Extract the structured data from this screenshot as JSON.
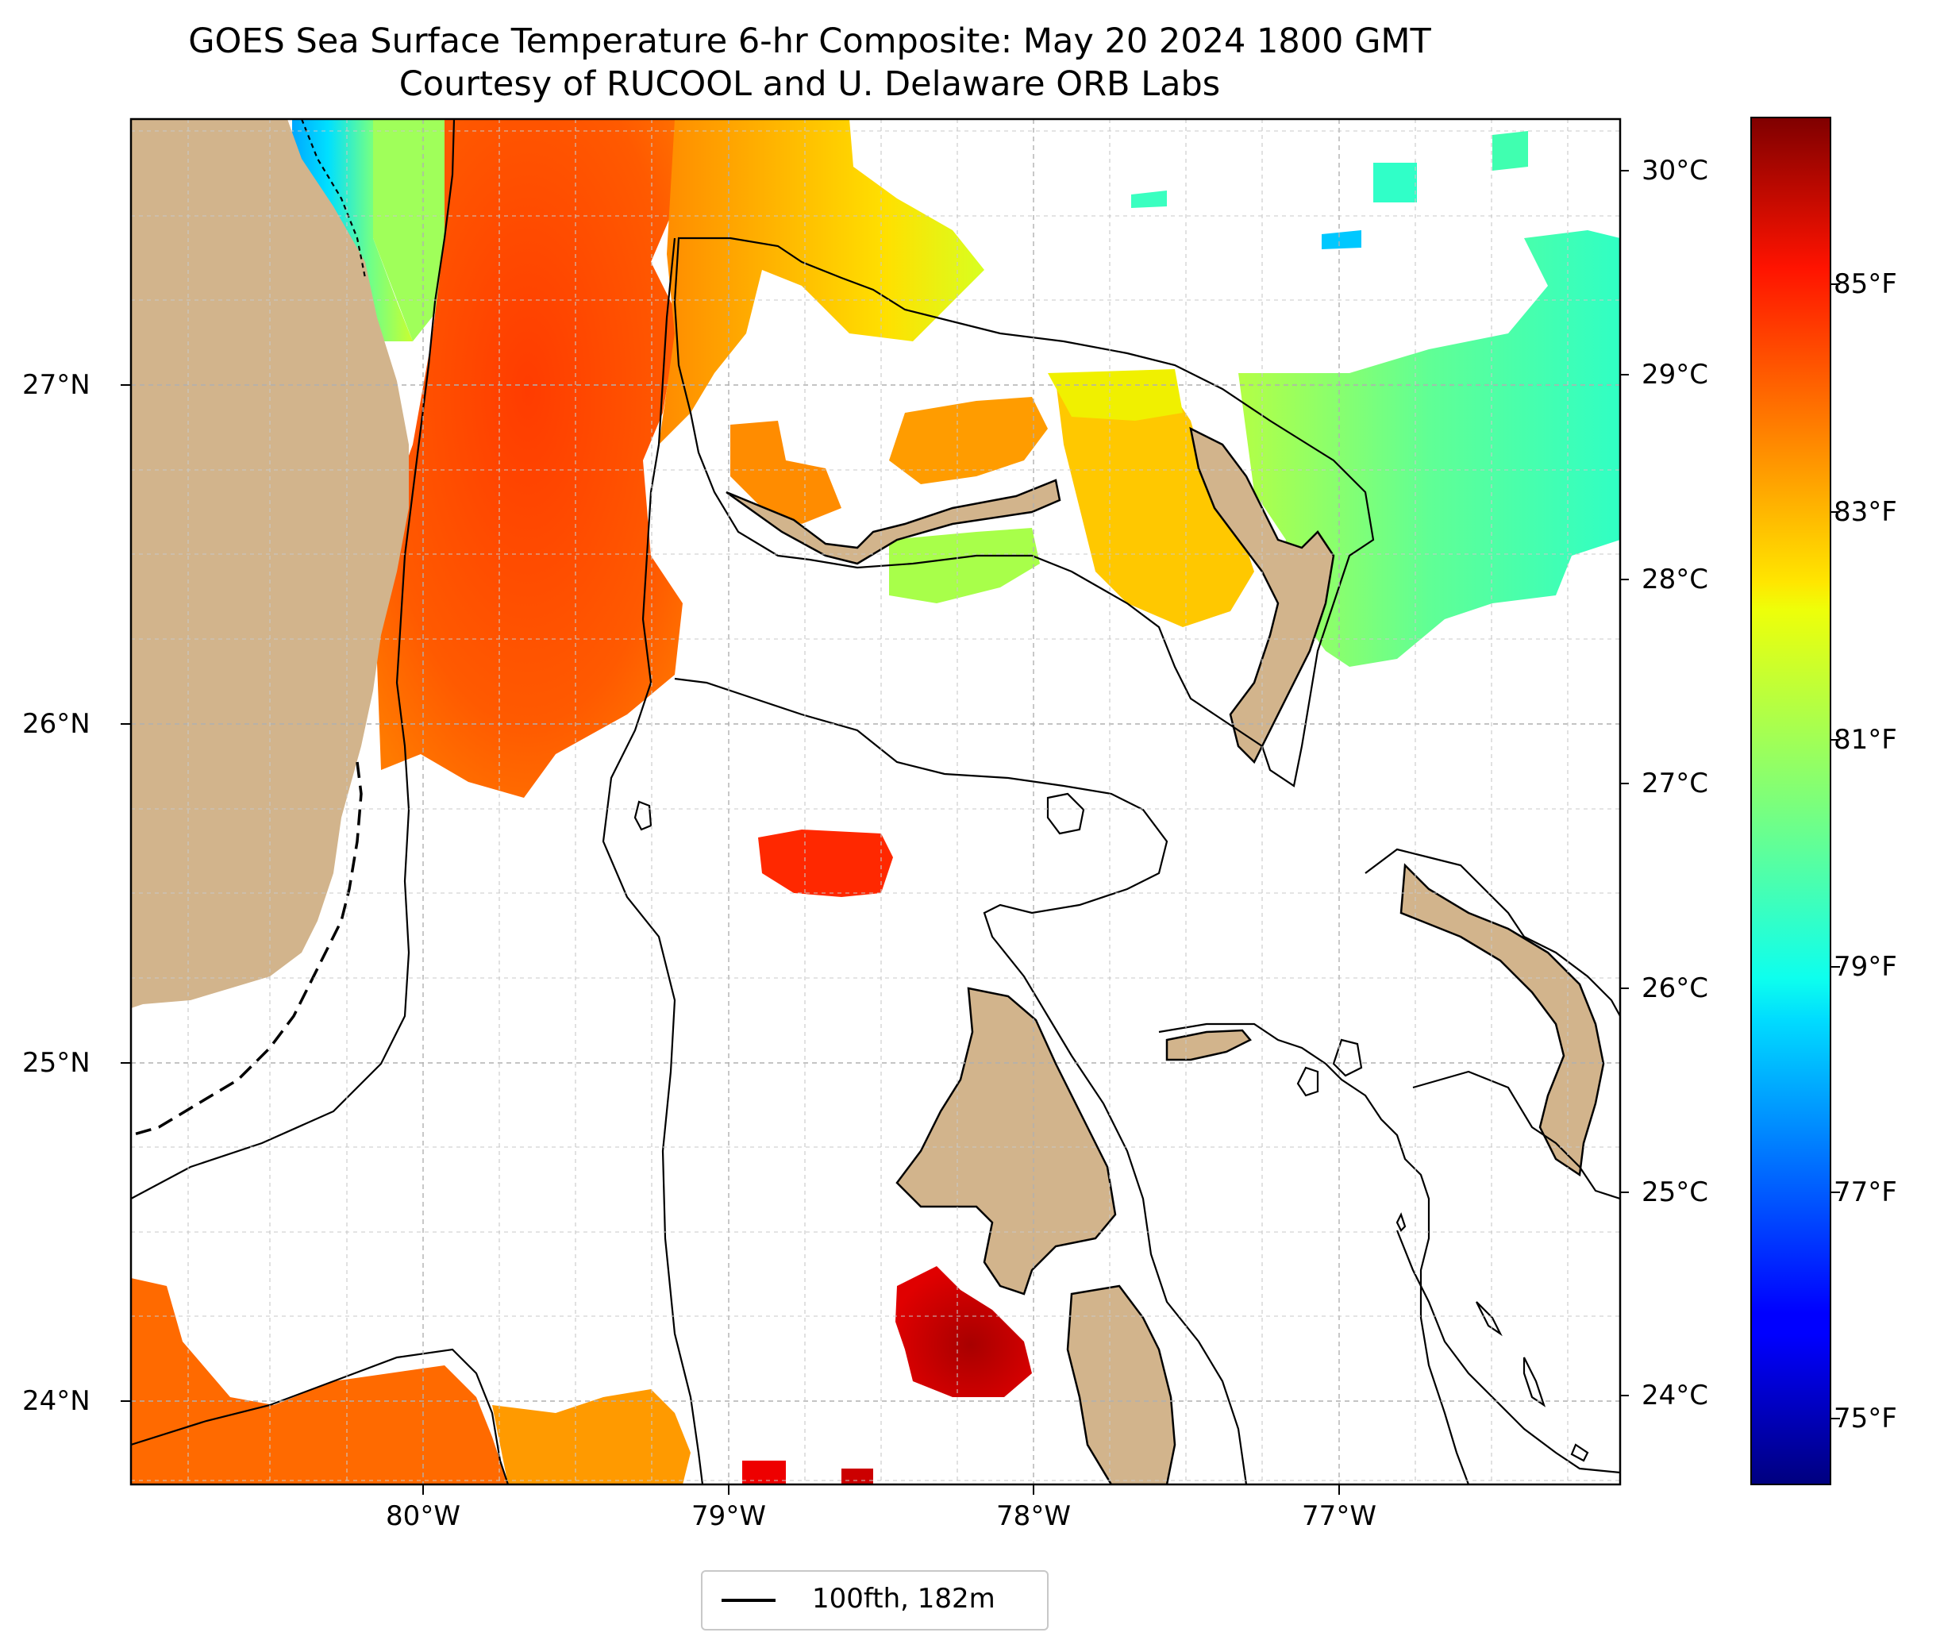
{
  "title": {
    "line1": "GOES Sea Surface Temperature 6-hr Composite: May 20 2024 1800 GMT",
    "line2": "Courtesy of RUCOOL and U. Delaware ORB Labs"
  },
  "axes": {
    "lat_labels": [
      "27°N",
      "26°N",
      "25°N",
      "24°N"
    ],
    "lon_labels": [
      "80°W",
      "79°W",
      "78°W",
      "77°W"
    ]
  },
  "colorbar": {
    "celsius_labels": [
      "30°C",
      "29°C",
      "28°C",
      "27°C",
      "26°C",
      "25°C",
      "24°C"
    ],
    "fahrenheit_labels": [
      "85°F",
      "83°F",
      "81°F",
      "79°F",
      "77°F",
      "75°F"
    ],
    "colormap": "jet",
    "range_celsius": [
      23.6,
      30.3
    ]
  },
  "legend": {
    "label": "100fth, 182m"
  },
  "colors": {
    "land": "#d2b48c",
    "coastline": "#000000",
    "grid": "#b0b0b0",
    "sst_warm": "#ff4a00",
    "sst_hot": "#cc0000",
    "sst_mid": "#ffc800",
    "sst_cool": "#7dff7a",
    "sst_cold": "#00c8ff"
  }
}
